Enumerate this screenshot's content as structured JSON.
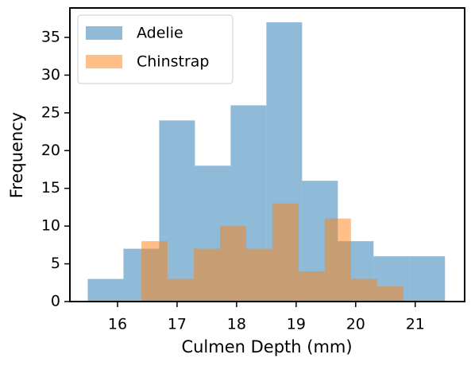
{
  "chart_data": {
    "type": "histogram",
    "xlabel": "Culmen Depth (mm)",
    "ylabel": "Frequency",
    "series": [
      {
        "name": "Adelie",
        "color": "#1f77b4",
        "bins": [
          15.5,
          16.1,
          16.7,
          17.3,
          17.9,
          18.5,
          19.1,
          19.7,
          20.3,
          20.9,
          21.5
        ],
        "values": [
          3,
          7,
          24,
          18,
          26,
          37,
          16,
          8,
          6,
          6
        ]
      },
      {
        "name": "Chinstrap",
        "color": "#ff7f0e",
        "bins": [
          16.4,
          16.84,
          17.28,
          17.72,
          18.16,
          18.6,
          19.04,
          19.48,
          19.92,
          20.36,
          20.8
        ],
        "values": [
          8,
          3,
          7,
          10,
          7,
          13,
          4,
          11,
          3,
          2
        ]
      }
    ],
    "opacity": 0.5,
    "xlim": [
      15.2,
      21.83
    ],
    "ylim": [
      0,
      38.9
    ],
    "xticks": [
      16,
      17,
      18,
      19,
      20,
      21
    ],
    "yticks": [
      0,
      5,
      10,
      15,
      20,
      25,
      30,
      35
    ],
    "grid": false,
    "legend": "upper left"
  }
}
